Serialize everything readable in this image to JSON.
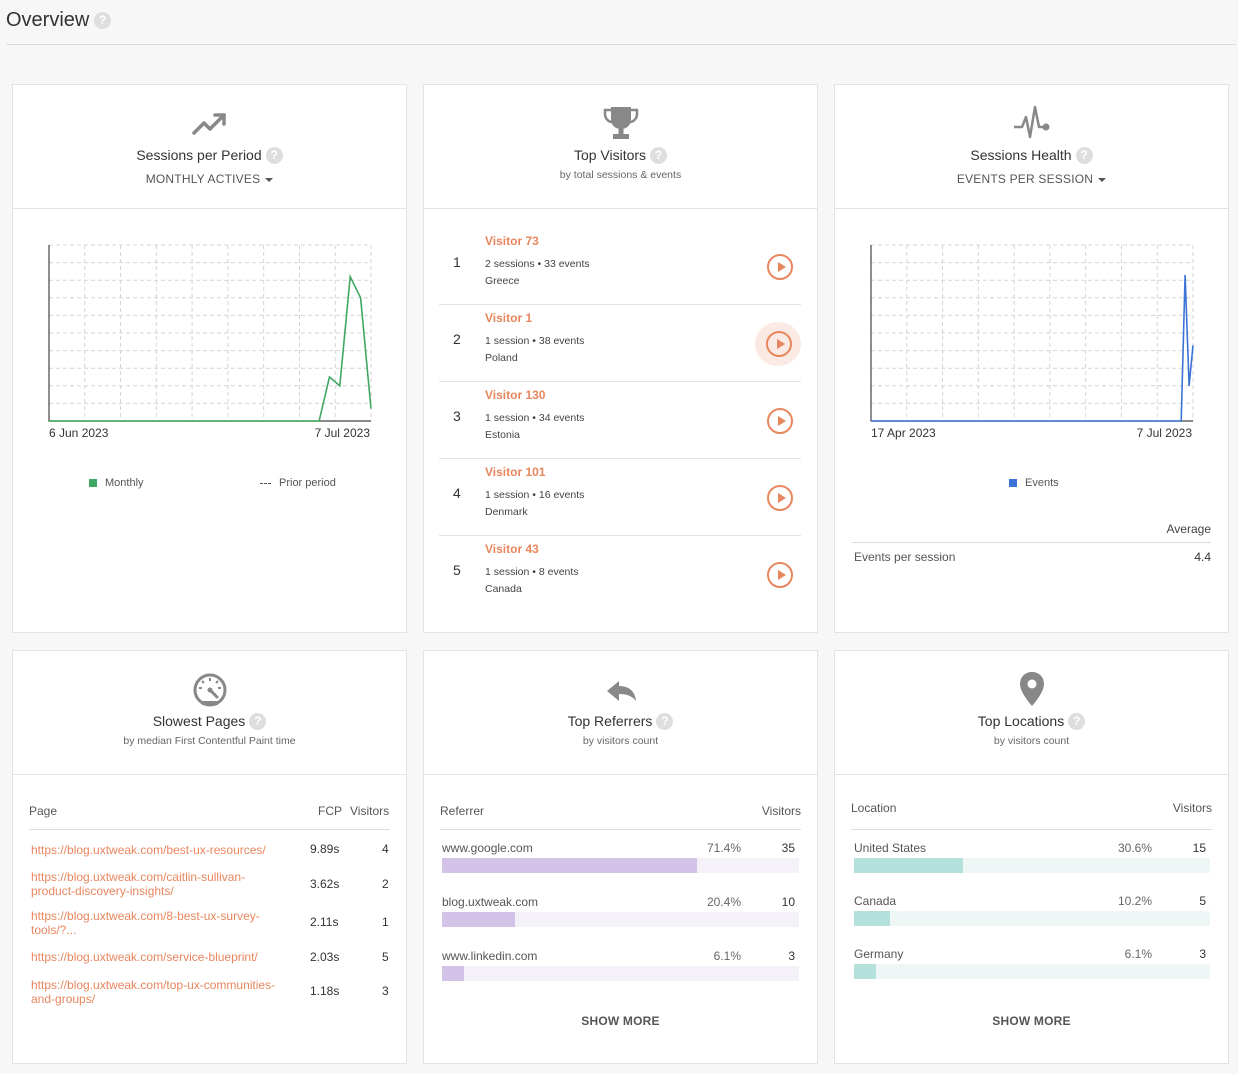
{
  "header": {
    "title": "Overview",
    "help": "?"
  },
  "sessions": {
    "title": "Sessions per Period",
    "dropdown": "MONTHLY ACTIVES",
    "x_start": "6 Jun 2023",
    "x_end": "7 Jul 2023",
    "legend": {
      "series": "Monthly",
      "prior": "Prior period",
      "color": "#3fa860"
    },
    "chart_data": {
      "type": "line",
      "x_range": [
        "6 Jun 2023",
        "7 Jul 2023"
      ],
      "series": [
        {
          "name": "Monthly",
          "values": [
            0,
            0,
            0,
            0,
            0,
            0,
            0,
            0,
            0,
            0,
            0,
            0,
            0,
            0,
            0,
            0,
            0,
            0,
            0,
            0,
            0,
            0,
            0,
            0,
            0,
            0,
            0,
            0.25,
            0.2,
            0.82,
            0.7,
            0.07
          ]
        }
      ],
      "grid": true
    }
  },
  "visitors": {
    "title": "Top Visitors",
    "subtitle": "by total sessions & events",
    "items": [
      {
        "rank": "1",
        "name": "Visitor 73",
        "stats": "2 sessions • 33 events",
        "country": "Greece"
      },
      {
        "rank": "2",
        "name": "Visitor 1",
        "stats": "1 session • 38 events",
        "country": "Poland"
      },
      {
        "rank": "3",
        "name": "Visitor 130",
        "stats": "1 session • 34 events",
        "country": "Estonia"
      },
      {
        "rank": "4",
        "name": "Visitor 101",
        "stats": "1 session • 16 events",
        "country": "Denmark"
      },
      {
        "rank": "5",
        "name": "Visitor 43",
        "stats": "1 session • 8 events",
        "country": "Canada"
      }
    ]
  },
  "health": {
    "title": "Sessions Health",
    "dropdown": "EVENTS PER SESSION",
    "x_start": "17 Apr 2023",
    "x_end": "7 Jul 2023",
    "legend": {
      "series": "Events",
      "color": "#3b73d6"
    },
    "col_header": "Average",
    "row_label": "Events per session",
    "row_value": "4.4",
    "chart_data": {
      "type": "line",
      "x_range": [
        "17 Apr 2023",
        "7 Jul 2023"
      ],
      "series": [
        {
          "name": "Events",
          "values": [
            0,
            0,
            0,
            0,
            0,
            0,
            0,
            0,
            0,
            0,
            0,
            0,
            0,
            0,
            0,
            0,
            0,
            0,
            0,
            0,
            0,
            0,
            0,
            0,
            0,
            0,
            0,
            0,
            0,
            0,
            0,
            0,
            0,
            0,
            0,
            0,
            0,
            0,
            0,
            0,
            0,
            0,
            0,
            0,
            0,
            0,
            0,
            0,
            0,
            0,
            0,
            0,
            0,
            0,
            0,
            0,
            0,
            0,
            0,
            0,
            0,
            0,
            0,
            0,
            0,
            0,
            0,
            0,
            0,
            0,
            0,
            0,
            0,
            0,
            0,
            0,
            0,
            0,
            0,
            0,
            0.83,
            0.2,
            0.43
          ]
        }
      ],
      "grid": true
    }
  },
  "slowest": {
    "title": "Slowest Pages",
    "subtitle": "by median First Contentful Paint time",
    "headers": {
      "page": "Page",
      "fcp": "FCP",
      "visitors": "Visitors"
    },
    "rows": [
      {
        "page": "https://blog.uxtweak.com/best-ux-resources/",
        "fcp": "9.89s",
        "visitors": "4"
      },
      {
        "page": "https://blog.uxtweak.com/caitlin-sullivan-product-discovery-insights/",
        "fcp": "3.62s",
        "visitors": "2"
      },
      {
        "page": "https://blog.uxtweak.com/8-best-ux-survey-tools/?...",
        "fcp": "2.11s",
        "visitors": "1"
      },
      {
        "page": "https://blog.uxtweak.com/service-blueprint/",
        "fcp": "2.03s",
        "visitors": "5"
      },
      {
        "page": "https://blog.uxtweak.com/top-ux-communities-and-groups/",
        "fcp": "1.18s",
        "visitors": "3"
      }
    ]
  },
  "referrers": {
    "title": "Top Referrers",
    "subtitle": "by visitors count",
    "headers": {
      "referrer": "Referrer",
      "visitors": "Visitors"
    },
    "bar_color": "#d3c3e9",
    "track_color": "#f4f1f9",
    "rows": [
      {
        "name": "www.google.com",
        "pct": "71.4%",
        "count": "35",
        "fraction": 0.714
      },
      {
        "name": "blog.uxtweak.com",
        "pct": "20.4%",
        "count": "10",
        "fraction": 0.204
      },
      {
        "name": "www.linkedin.com",
        "pct": "6.1%",
        "count": "3",
        "fraction": 0.061
      }
    ],
    "show_more": "SHOW MORE"
  },
  "locations": {
    "title": "Top Locations",
    "subtitle": "by visitors count",
    "headers": {
      "location": "Location",
      "visitors": "Visitors"
    },
    "bar_color": "#b5e1dc",
    "track_color": "#eef7f6",
    "rows": [
      {
        "name": "United States",
        "pct": "30.6%",
        "count": "15",
        "fraction": 0.306
      },
      {
        "name": "Canada",
        "pct": "10.2%",
        "count": "5",
        "fraction": 0.102
      },
      {
        "name": "Germany",
        "pct": "6.1%",
        "count": "3",
        "fraction": 0.061
      }
    ],
    "show_more": "SHOW MORE"
  }
}
